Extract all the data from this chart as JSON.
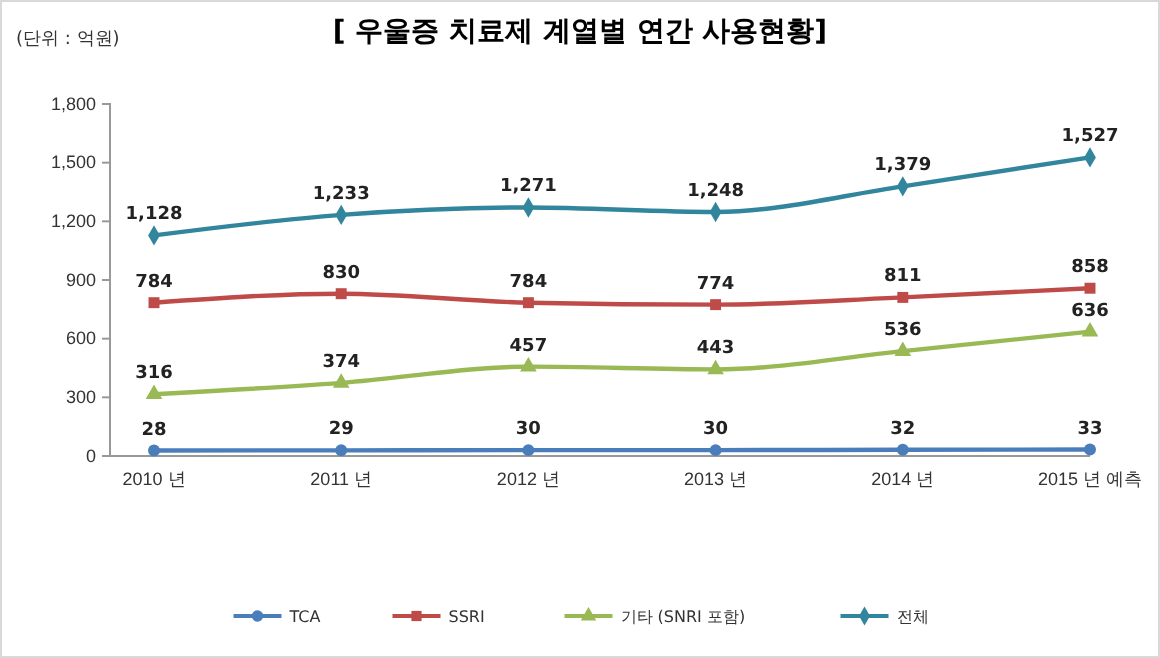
{
  "chart_data": {
    "type": "line",
    "title": "[ 우울증 치료제 계열별 연간 사용현황]",
    "annotations": [
      "(단위 : 억원)"
    ],
    "categories": [
      "2010 년",
      "2011 년",
      "2012 년",
      "2013 년",
      "2014 년",
      "2015 년 예측"
    ],
    "series": [
      {
        "name": "TCA",
        "color": "#4a7ebb",
        "marker": "circle",
        "values": [
          28,
          29,
          30,
          30,
          32,
          33
        ],
        "value_labels": [
          "28",
          "29",
          "30",
          "30",
          "32",
          "33"
        ]
      },
      {
        "name": "SSRI",
        "color": "#be4b48",
        "marker": "square",
        "values": [
          784,
          830,
          784,
          774,
          811,
          858
        ],
        "value_labels": [
          "784",
          "830",
          "784",
          "774",
          "811",
          "858"
        ]
      },
      {
        "name": "기타 (SNRI 포함)",
        "color": "#98b954",
        "marker": "triangle",
        "values": [
          316,
          374,
          457,
          443,
          536,
          636
        ],
        "value_labels": [
          "316",
          "374",
          "457",
          "443",
          "536",
          "636"
        ]
      },
      {
        "name": "전체",
        "color": "#31859c",
        "marker": "diamond",
        "values": [
          1128,
          1233,
          1271,
          1248,
          1379,
          1527
        ],
        "value_labels": [
          "1,128",
          "1,233",
          "1,271",
          "1,248",
          "1,379",
          "1,527"
        ]
      }
    ],
    "ylim": [
      0,
      1800
    ],
    "yticks": [
      0,
      300,
      600,
      900,
      {
        "value": 1200,
        "label": "1,200"
      },
      {
        "value": 1500,
        "label": "1,500"
      },
      {
        "value": 1800,
        "label": "1,800"
      }
    ],
    "legend": "bottom",
    "grid": false
  }
}
